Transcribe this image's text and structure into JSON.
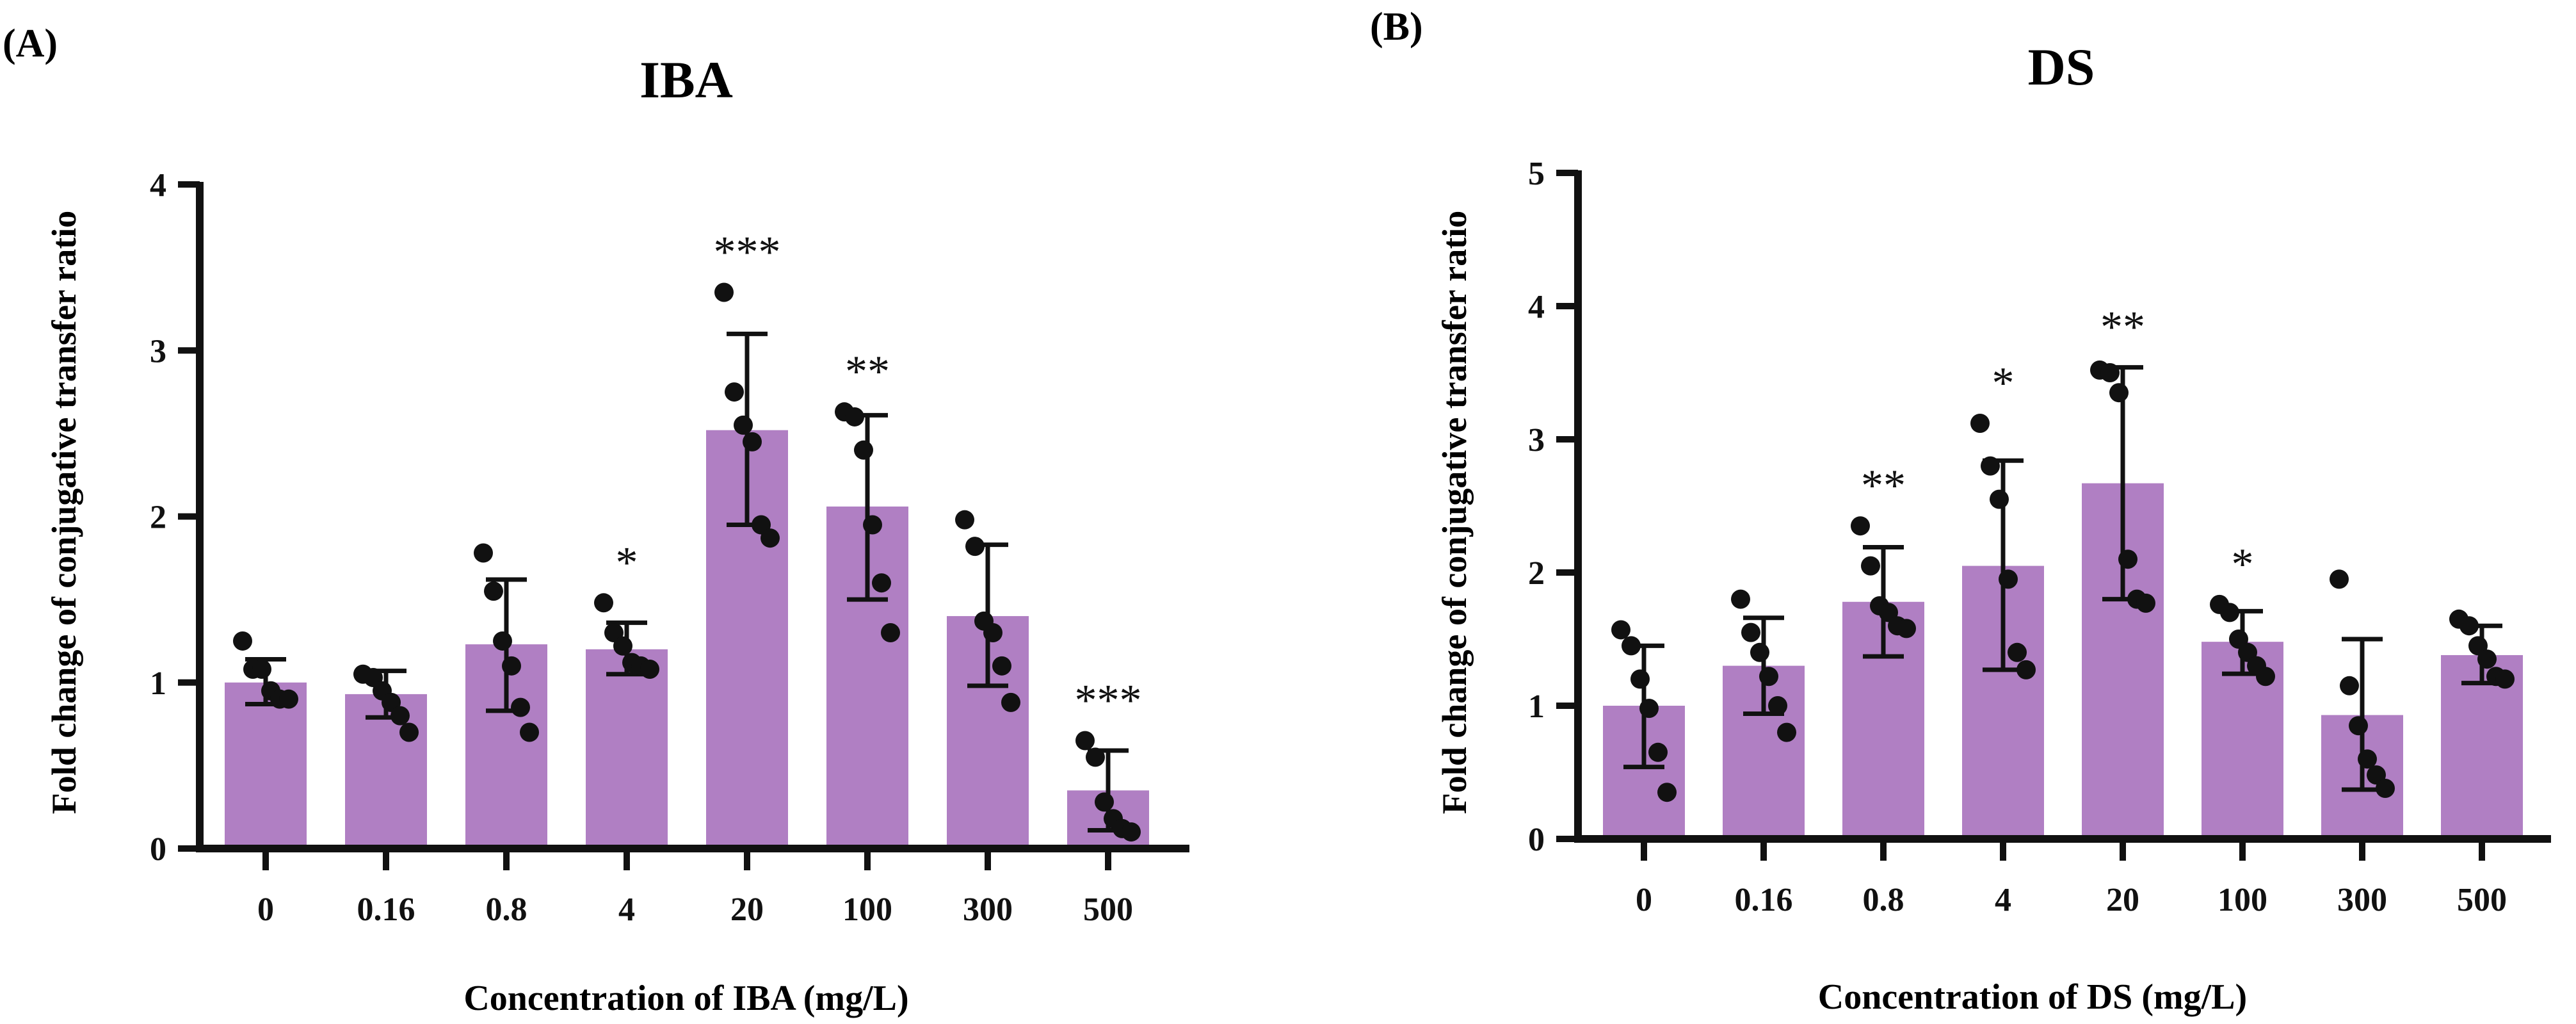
{
  "chart_data": [
    {
      "type": "bar",
      "panel_label": "(A)",
      "title": "IBA",
      "xlabel": "Concentration of IBA (mg/L)",
      "ylabel": "Fold change of conjugative transfer ratio",
      "ylim": [
        0,
        4
      ],
      "yticks": [
        "0",
        "1",
        "2",
        "3",
        "4"
      ],
      "categories": [
        "0",
        "0.16",
        "0.8",
        "4",
        "20",
        "100",
        "300",
        "500"
      ],
      "values": [
        1.0,
        0.93,
        1.23,
        1.2,
        2.52,
        2.06,
        1.4,
        0.35
      ],
      "error_low": [
        0.87,
        0.79,
        0.83,
        1.05,
        1.95,
        1.5,
        0.98,
        0.11
      ],
      "error_high": [
        1.14,
        1.07,
        1.62,
        1.36,
        3.1,
        2.61,
        1.83,
        0.59
      ],
      "points": [
        [
          1.25,
          1.08,
          1.08,
          0.95,
          0.9,
          0.9
        ],
        [
          1.05,
          1.03,
          0.95,
          0.88,
          0.8,
          0.7
        ],
        [
          1.78,
          1.55,
          1.25,
          1.1,
          0.85,
          0.7
        ],
        [
          1.48,
          1.3,
          1.22,
          1.12,
          1.1,
          1.08
        ],
        [
          3.35,
          2.75,
          2.55,
          2.45,
          1.95,
          1.87
        ],
        [
          2.63,
          2.6,
          2.4,
          1.95,
          1.6,
          1.3
        ],
        [
          1.98,
          1.82,
          1.37,
          1.3,
          1.1,
          0.88
        ],
        [
          0.65,
          0.55,
          0.28,
          0.18,
          0.12,
          0.1
        ]
      ],
      "significance": [
        "",
        "",
        "",
        "*",
        "***",
        "**",
        "",
        "***"
      ],
      "bar_color": "#b07fc3"
    },
    {
      "type": "bar",
      "panel_label": "(B)",
      "title": "DS",
      "xlabel": "Concentration of  DS (mg/L)",
      "ylabel": "Fold change of conjugative transfer ratio",
      "ylim": [
        0,
        5
      ],
      "yticks": [
        "0",
        "1",
        "2",
        "3",
        "4",
        "5"
      ],
      "categories": [
        "0",
        "0.16",
        "0.8",
        "4",
        "20",
        "100",
        "300",
        "500"
      ],
      "values": [
        1.0,
        1.3,
        1.78,
        2.05,
        2.67,
        1.48,
        0.93,
        1.38
      ],
      "error_low": [
        0.54,
        0.94,
        1.37,
        1.27,
        1.8,
        1.24,
        0.37,
        1.17
      ],
      "error_high": [
        1.45,
        1.66,
        2.19,
        2.84,
        3.54,
        1.71,
        1.5,
        1.6
      ],
      "points": [
        [
          1.57,
          1.45,
          1.2,
          0.98,
          0.65,
          0.35
        ],
        [
          1.8,
          1.55,
          1.4,
          1.22,
          1.0,
          0.8
        ],
        [
          2.35,
          2.05,
          1.75,
          1.7,
          1.6,
          1.58
        ],
        [
          3.12,
          2.8,
          2.55,
          1.95,
          1.4,
          1.27
        ],
        [
          3.52,
          3.5,
          3.35,
          2.1,
          1.8,
          1.77
        ],
        [
          1.76,
          1.7,
          1.5,
          1.4,
          1.3,
          1.22
        ],
        [
          1.95,
          1.15,
          0.85,
          0.6,
          0.48,
          0.38
        ],
        [
          1.65,
          1.6,
          1.45,
          1.35,
          1.22,
          1.2
        ]
      ],
      "significance": [
        "",
        "",
        "**",
        "*",
        "**",
        "*",
        "",
        ""
      ],
      "bar_color": "#b07fc3"
    }
  ]
}
